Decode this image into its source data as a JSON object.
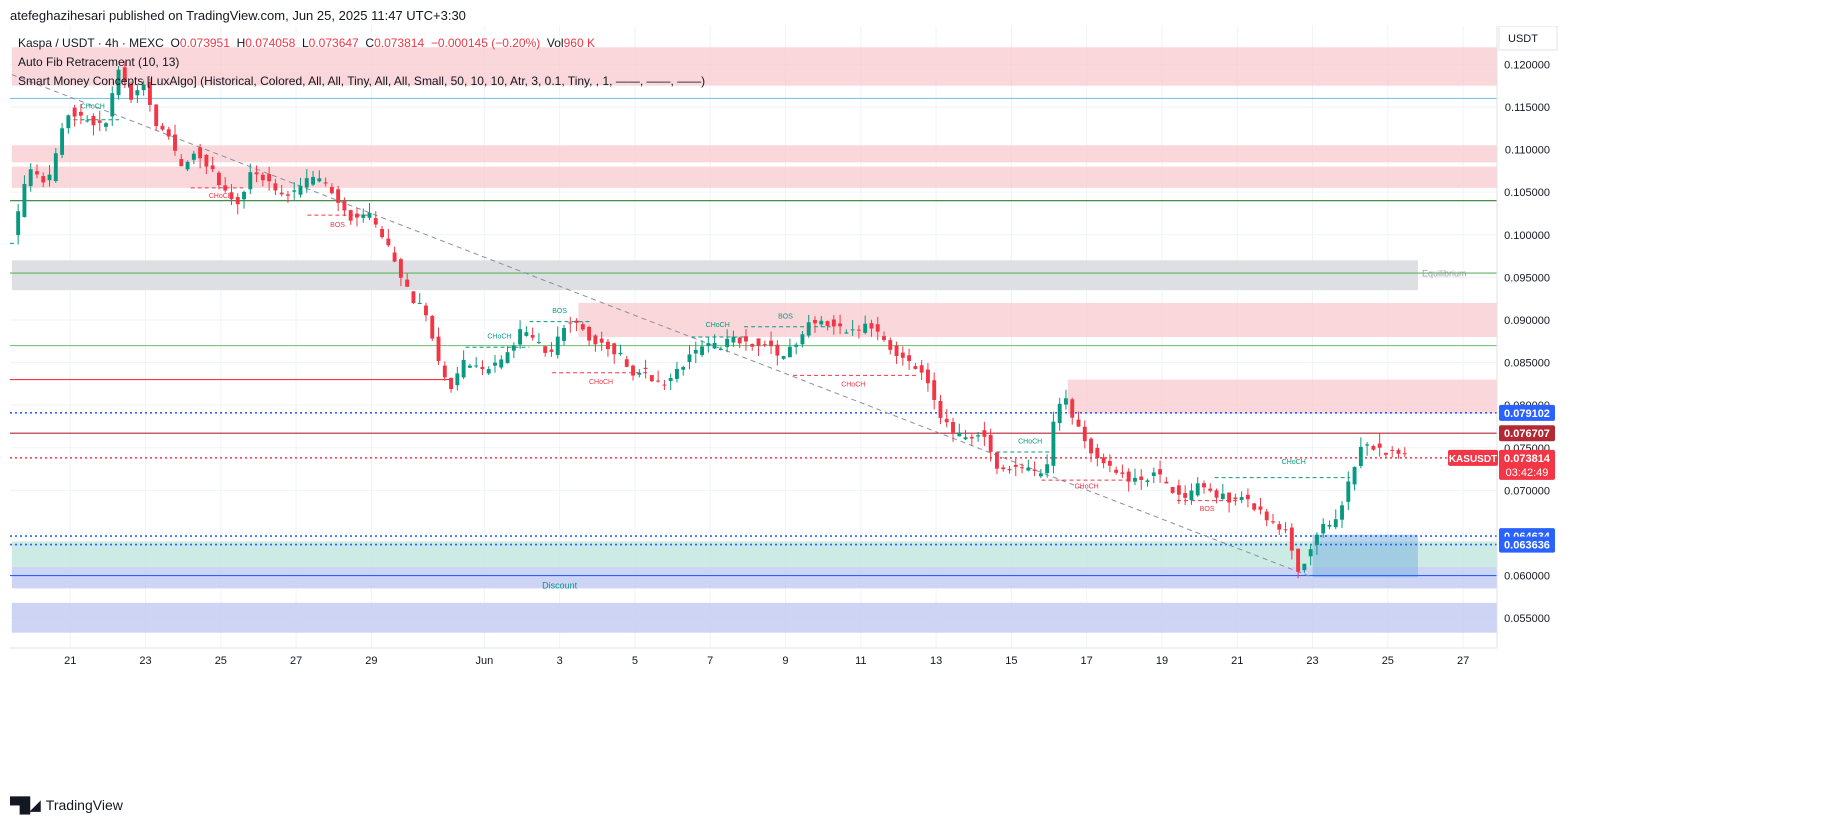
{
  "header": {
    "publisher": "atefeghazihesari published on TradingView.com, Jun 25, 2025 11:47 UTC+3:30"
  },
  "legend": {
    "symbol": "Kaspa / USDT · 4h · MEXC",
    "o_label": "O",
    "o_value": "0.073951",
    "h_label": "H",
    "h_value": "0.074058",
    "l_label": "L",
    "l_value": "0.073647",
    "c_label": "C",
    "c_value": "0.073814",
    "change": "−0.000145 (−0.20%)",
    "vol_label": "Vol",
    "vol_value": "960 K",
    "indicator1": "Auto Fib Retracement (10, 13)",
    "indicator2": "Smart Money Concepts [LuxAlgo] (Historical, Colored, All, All, Tiny, All, All, Small, 50, 10, 10, Atr, 3, 0.1, Tiny, , 1, ——, ——, ——)"
  },
  "footer": {
    "brand": "TradingView"
  },
  "colors": {
    "up": "#089981",
    "down": "#f23645",
    "supply": "#f8c9cd",
    "demand": "#bfe6dd",
    "discount": "#c4cdf2",
    "equilibrium": "#dddfe3",
    "fib": "#2962ff"
  },
  "chart_data": {
    "type": "candlestick",
    "currency": "USDT",
    "ylim": [
      0.0515,
      0.1245
    ],
    "y_ticks": [
      0.055,
      0.06,
      0.065,
      0.07,
      0.075,
      0.08,
      0.085,
      0.09,
      0.095,
      0.1,
      0.105,
      0.11,
      0.115,
      0.12
    ],
    "y_tick_labels": [
      "0.055000",
      "0.060000",
      "0.065000",
      "0.070000",
      "0.075000",
      "0.080000",
      "0.085000",
      "0.090000",
      "0.095000",
      "0.100000",
      "0.105000",
      "0.110000",
      "0.115000",
      "0.120000"
    ],
    "x_ticks": [
      {
        "label": "21",
        "day": 21
      },
      {
        "label": "23",
        "day": 23
      },
      {
        "label": "25",
        "day": 25
      },
      {
        "label": "27",
        "day": 27
      },
      {
        "label": "29",
        "day": 29
      },
      {
        "label": "Jun",
        "day": 32
      },
      {
        "label": "3",
        "day": 34
      },
      {
        "label": "5",
        "day": 36
      },
      {
        "label": "7",
        "day": 38
      },
      {
        "label": "9",
        "day": 40
      },
      {
        "label": "11",
        "day": 42
      },
      {
        "label": "13",
        "day": 44
      },
      {
        "label": "15",
        "day": 46
      },
      {
        "label": "17",
        "day": 48
      },
      {
        "label": "19",
        "day": 50
      },
      {
        "label": "21",
        "day": 52
      },
      {
        "label": "23",
        "day": 54
      },
      {
        "label": "25",
        "day": 56
      },
      {
        "label": "27",
        "day": 58
      }
    ],
    "xlim_days": [
      19.4,
      58.9
    ],
    "anchors": [
      [
        19.45,
        0.0995
      ],
      [
        19.9,
        0.1078
      ],
      [
        20.4,
        0.1058
      ],
      [
        20.9,
        0.1145
      ],
      [
        21.4,
        0.1135
      ],
      [
        21.9,
        0.1125
      ],
      [
        22.3,
        0.1198
      ],
      [
        22.6,
        0.116
      ],
      [
        23.0,
        0.118
      ],
      [
        23.2,
        0.1135
      ],
      [
        23.6,
        0.112
      ],
      [
        23.9,
        0.1078
      ],
      [
        24.3,
        0.1098
      ],
      [
        24.7,
        0.108
      ],
      [
        25.1,
        0.105
      ],
      [
        25.4,
        0.1032
      ],
      [
        25.8,
        0.1072
      ],
      [
        26.2,
        0.1065
      ],
      [
        26.6,
        0.1045
      ],
      [
        27.0,
        0.105
      ],
      [
        27.4,
        0.1068
      ],
      [
        27.8,
        0.106
      ],
      [
        28.1,
        0.104
      ],
      [
        28.5,
        0.1018
      ],
      [
        28.9,
        0.1025
      ],
      [
        29.3,
        0.0998
      ],
      [
        29.7,
        0.096
      ],
      [
        30.1,
        0.0925
      ],
      [
        30.5,
        0.0905
      ],
      [
        30.8,
        0.0845
      ],
      [
        31.1,
        0.0822
      ],
      [
        31.5,
        0.0853
      ],
      [
        31.9,
        0.084
      ],
      [
        32.3,
        0.0848
      ],
      [
        32.7,
        0.0865
      ],
      [
        33.0,
        0.089
      ],
      [
        33.4,
        0.0872
      ],
      [
        33.8,
        0.086
      ],
      [
        34.1,
        0.0892
      ],
      [
        34.5,
        0.09
      ],
      [
        34.8,
        0.0878
      ],
      [
        35.2,
        0.087
      ],
      [
        35.6,
        0.086
      ],
      [
        35.9,
        0.0838
      ],
      [
        36.3,
        0.084
      ],
      [
        36.7,
        0.082
      ],
      [
        37.1,
        0.084
      ],
      [
        37.5,
        0.0858
      ],
      [
        37.9,
        0.0872
      ],
      [
        38.3,
        0.0868
      ],
      [
        38.6,
        0.088
      ],
      [
        39.0,
        0.0872
      ],
      [
        39.4,
        0.0875
      ],
      [
        39.8,
        0.0858
      ],
      [
        40.2,
        0.0868
      ],
      [
        40.6,
        0.0895
      ],
      [
        41.0,
        0.09
      ],
      [
        41.4,
        0.089
      ],
      [
        41.8,
        0.0885
      ],
      [
        42.2,
        0.0895
      ],
      [
        42.6,
        0.0878
      ],
      [
        42.9,
        0.086
      ],
      [
        43.3,
        0.085
      ],
      [
        43.7,
        0.0835
      ],
      [
        44.1,
        0.0785
      ],
      [
        44.4,
        0.077
      ],
      [
        44.8,
        0.076
      ],
      [
        45.2,
        0.0768
      ],
      [
        45.6,
        0.073
      ],
      [
        45.9,
        0.0725
      ],
      [
        46.3,
        0.0728
      ],
      [
        46.7,
        0.0718
      ],
      [
        47.0,
        0.0728
      ],
      [
        47.15,
        0.079
      ],
      [
        47.4,
        0.081
      ],
      [
        47.7,
        0.078
      ],
      [
        48.0,
        0.0752
      ],
      [
        48.3,
        0.0738
      ],
      [
        48.7,
        0.0725
      ],
      [
        49.1,
        0.0712
      ],
      [
        49.5,
        0.071
      ],
      [
        49.8,
        0.0722
      ],
      [
        50.2,
        0.0705
      ],
      [
        50.6,
        0.0688
      ],
      [
        51.0,
        0.071
      ],
      [
        51.4,
        0.0695
      ],
      [
        51.8,
        0.069
      ],
      [
        52.2,
        0.0692
      ],
      [
        52.6,
        0.0675
      ],
      [
        53.0,
        0.0658
      ],
      [
        53.3,
        0.0652
      ],
      [
        53.6,
        0.0608
      ],
      [
        53.9,
        0.0625
      ],
      [
        54.2,
        0.066
      ],
      [
        54.6,
        0.066
      ],
      [
        54.9,
        0.0698
      ],
      [
        55.1,
        0.073
      ],
      [
        55.4,
        0.0758
      ],
      [
        55.8,
        0.0745
      ],
      [
        56.2,
        0.0748
      ],
      [
        56.6,
        0.0738
      ]
    ],
    "zones": [
      {
        "kind": "supply",
        "from": 19.45,
        "to": 58.9,
        "top": 0.1195,
        "bottom": 0.1175
      },
      {
        "kind": "supply",
        "from": 19.45,
        "to": 58.9,
        "top": 0.122,
        "bottom": 0.1195
      },
      {
        "kind": "supply",
        "from": 19.45,
        "to": 58.9,
        "top": 0.1105,
        "bottom": 0.1085
      },
      {
        "kind": "supply",
        "from": 19.45,
        "to": 58.9,
        "top": 0.108,
        "bottom": 0.1055
      },
      {
        "kind": "equilibrium",
        "from": 19.45,
        "to": 56.8,
        "top": 0.097,
        "bottom": 0.0935
      },
      {
        "kind": "supply",
        "from": 34.5,
        "to": 58.9,
        "top": 0.092,
        "bottom": 0.088
      },
      {
        "kind": "supply",
        "from": 47.5,
        "to": 58.9,
        "top": 0.083,
        "bottom": 0.079
      },
      {
        "kind": "demand",
        "from": 19.45,
        "to": 58.9,
        "top": 0.064,
        "bottom": 0.061
      },
      {
        "kind": "discount",
        "from": 19.45,
        "to": 58.9,
        "top": 0.061,
        "bottom": 0.0585
      },
      {
        "kind": "discount",
        "from": 19.45,
        "to": 58.9,
        "top": 0.0568,
        "bottom": 0.0533
      },
      {
        "kind": "fibbox",
        "from": 54.0,
        "to": 56.8,
        "top": 0.0648,
        "bottom": 0.0598
      }
    ],
    "hlines": [
      {
        "price": 0.116,
        "color": "#7fc6e6",
        "style": "solid"
      },
      {
        "price": 0.104,
        "color": "#2e7d32",
        "style": "solid"
      },
      {
        "price": 0.0955,
        "color": "#5cb85c",
        "style": "solid"
      },
      {
        "price": 0.087,
        "color": "#7bc67e",
        "style": "solid"
      },
      {
        "price": 0.083,
        "color": "#f23645",
        "style": "solid",
        "to": 31.1
      },
      {
        "price": 0.079102,
        "color": "#2962ff",
        "style": "dotted",
        "badge": "0.079102"
      },
      {
        "price": 0.076707,
        "color": "#b22833",
        "style": "solid",
        "badge": "0.076707"
      },
      {
        "price": 0.073814,
        "color": "#f23645",
        "style": "dotted"
      },
      {
        "price": 0.064634,
        "color": "#2962ff",
        "style": "dotted",
        "badge": "0.064634"
      },
      {
        "price": 0.063636,
        "color": "#2962ff",
        "style": "dotted",
        "badge": "0.063636"
      },
      {
        "price": 0.06,
        "color": "#2962ff",
        "style": "solid"
      }
    ],
    "trendline": {
      "from": [
        19.45,
        0.1188
      ],
      "to": [
        54.0,
        0.0598
      ]
    },
    "structure_labels": [
      {
        "text": "CHoCH",
        "day": 21.6,
        "price": 0.1148,
        "color": "#089981"
      },
      {
        "text": "CHoCH",
        "day": 25.0,
        "price": 0.1043,
        "color": "#f23645"
      },
      {
        "text": "BOS",
        "day": 28.1,
        "price": 0.1009,
        "color": "#f23645"
      },
      {
        "text": "CHoCH",
        "day": 32.4,
        "price": 0.0878,
        "color": "#089981"
      },
      {
        "text": "BOS",
        "day": 34.0,
        "price": 0.0908,
        "color": "#089981"
      },
      {
        "text": "CHoCH",
        "day": 35.1,
        "price": 0.0825,
        "color": "#f23645"
      },
      {
        "text": "CHoCH",
        "day": 38.2,
        "price": 0.0892,
        "color": "#089981"
      },
      {
        "text": "BOS",
        "day": 40.0,
        "price": 0.0902,
        "color": "#089981"
      },
      {
        "text": "CHoCH",
        "day": 41.8,
        "price": 0.0822,
        "color": "#f23645"
      },
      {
        "text": "CHoCH",
        "day": 46.5,
        "price": 0.0755,
        "color": "#089981"
      },
      {
        "text": "CHoCH",
        "day": 48.0,
        "price": 0.0702,
        "color": "#f23645"
      },
      {
        "text": "BOS",
        "day": 51.2,
        "price": 0.0676,
        "color": "#f23645"
      },
      {
        "text": "CHoCH",
        "day": 53.5,
        "price": 0.0731,
        "color": "#089981"
      }
    ],
    "structure_lines": [
      {
        "from": 20.9,
        "to": 22.3,
        "price": 0.1135,
        "color": "#089981"
      },
      {
        "from": 24.2,
        "to": 25.6,
        "price": 0.1055,
        "color": "#f23645"
      },
      {
        "from": 27.3,
        "to": 28.9,
        "price": 0.1023,
        "color": "#f23645"
      },
      {
        "from": 31.5,
        "to": 33.2,
        "price": 0.0868,
        "color": "#089981"
      },
      {
        "from": 33.2,
        "to": 34.8,
        "price": 0.0898,
        "color": "#089981"
      },
      {
        "from": 33.8,
        "to": 36.4,
        "price": 0.0838,
        "color": "#f23645"
      },
      {
        "from": 37.5,
        "to": 38.9,
        "price": 0.088,
        "color": "#089981"
      },
      {
        "from": 38.9,
        "to": 41.2,
        "price": 0.0892,
        "color": "#089981"
      },
      {
        "from": 40.2,
        "to": 43.5,
        "price": 0.0835,
        "color": "#f23645"
      },
      {
        "from": 45.6,
        "to": 47.1,
        "price": 0.0745,
        "color": "#089981"
      },
      {
        "from": 46.8,
        "to": 49.2,
        "price": 0.0712,
        "color": "#f23645"
      },
      {
        "from": 50.4,
        "to": 52.0,
        "price": 0.0688,
        "color": "#f23645"
      },
      {
        "from": 51.4,
        "to": 55.0,
        "price": 0.0715,
        "color": "#089981"
      }
    ],
    "zone_labels": [
      {
        "text": "Equilibrium",
        "day": 57.5,
        "price": 0.0951,
        "color": "#9aa0a6"
      },
      {
        "text": "Discount",
        "day": 34.0,
        "price": 0.0585,
        "color": "#089981"
      }
    ],
    "last_price": {
      "symbol": "KASUSDT",
      "value": "0.073814",
      "countdown": "03:42:49",
      "price": 0.073814
    }
  }
}
